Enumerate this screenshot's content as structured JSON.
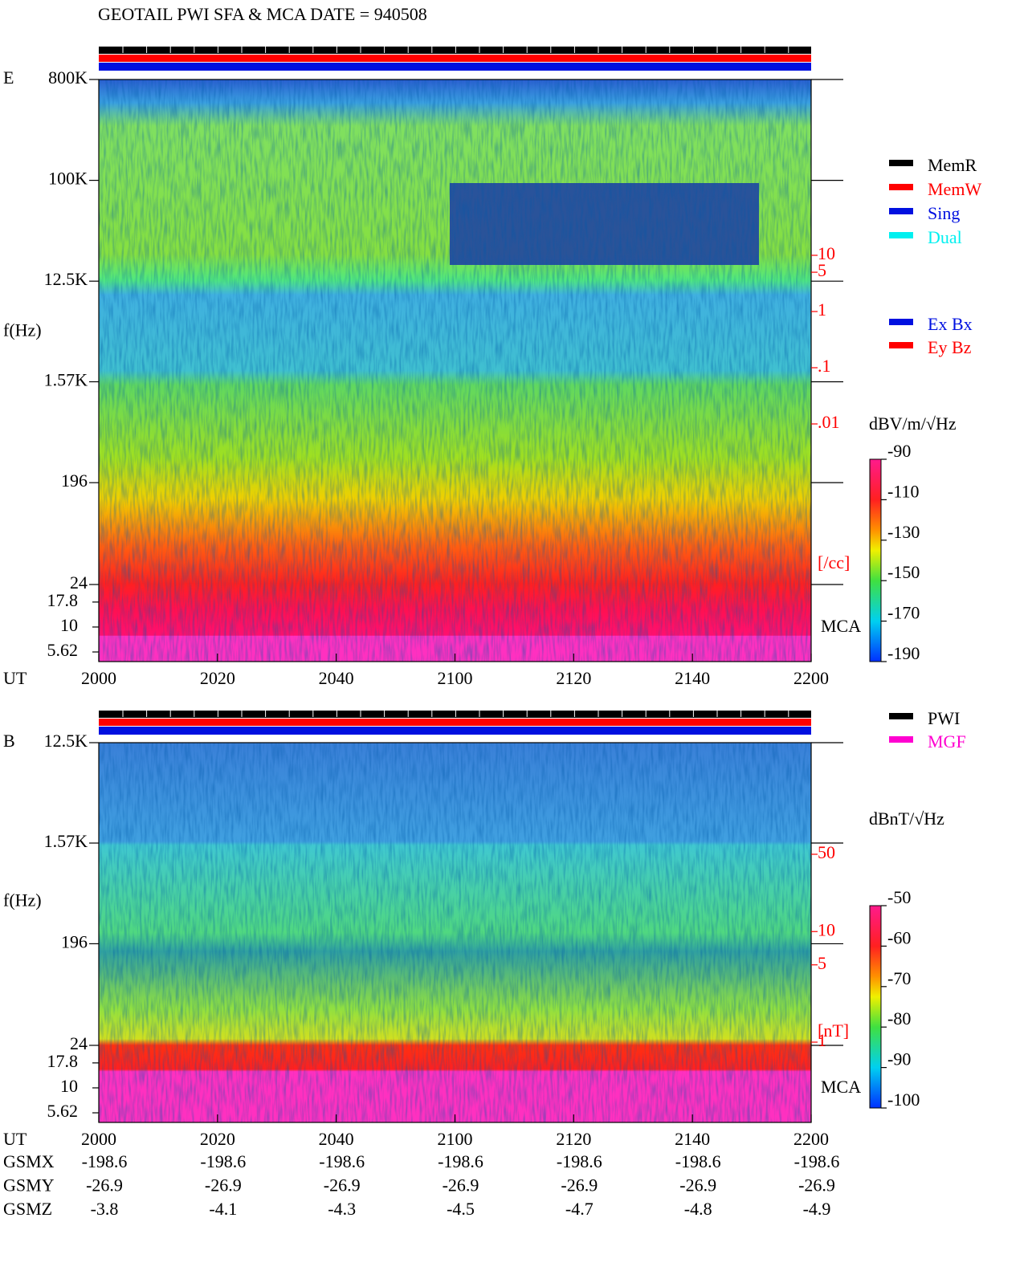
{
  "title": "GEOTAIL  PWI SFA & MCA   DATE = 940508",
  "x_label": "UT",
  "x_labels": [
    "2000",
    "2020",
    "2040",
    "2100",
    "2120",
    "2140",
    "2200"
  ],
  "chart_data": [
    {
      "type": "spectrogram",
      "label": "E",
      "ylabel": "f(Hz)",
      "log_y": true,
      "ylim": [
        24,
        800000
      ],
      "yticks": [
        {
          "value": 800000,
          "label": "800K"
        },
        {
          "value": 100000,
          "label": "100K"
        },
        {
          "value": 12500,
          "label": "12.5K"
        },
        {
          "value": 1570,
          "label": "1.57K"
        },
        196,
        24
      ],
      "mca_label": "MCA",
      "mca_ylim": [
        4.5,
        26.7
      ],
      "mca_ticks": [
        17.8,
        10,
        5.62
      ],
      "right_ylim": [
        0.01,
        10
      ],
      "right_ticks": [
        10,
        5,
        1,
        {
          "value": 0.1,
          "label": ".1"
        },
        {
          "value": 0.01,
          "label": ".01"
        }
      ],
      "right_unit": "[/cc]",
      "colorbar": {
        "label": "dBV/m/√Hz",
        "lim": [
          -190,
          -90
        ],
        "ticks": [
          -90,
          -110,
          -130,
          -150,
          -170,
          -190
        ]
      },
      "legends": [
        [
          {
            "name": "MemR",
            "color": "#000000"
          },
          {
            "name": "MemW",
            "color": "#ff0000"
          },
          {
            "name": "Sing",
            "color": "#0010e0"
          },
          {
            "name": "Dual",
            "color": "#00f0f0"
          }
        ],
        [
          {
            "name": "Ex Bx",
            "color": "#0010e0"
          },
          {
            "name": "Ey Bz",
            "color": "#ff0000"
          }
        ]
      ]
    },
    {
      "type": "spectrogram",
      "label": "B",
      "ylabel": "f(Hz)",
      "log_y": true,
      "ylim": [
        24,
        12500
      ],
      "yticks": [
        {
          "value": 12500,
          "label": "12.5K"
        },
        {
          "value": 1570,
          "label": "1.57K"
        },
        196,
        24
      ],
      "mca_label": "MCA",
      "mca_ylim": [
        4.5,
        26.7
      ],
      "mca_ticks": [
        17.8,
        10,
        5.62
      ],
      "right_ylim": [
        1,
        50
      ],
      "right_ticks": [
        50,
        10,
        5,
        1
      ],
      "right_unit": "[nT]",
      "colorbar": {
        "label": "dBnT/√Hz",
        "lim": [
          -100,
          -50
        ],
        "ticks": [
          -50,
          -60,
          -70,
          -80,
          -90,
          -100
        ]
      },
      "legends": [
        [
          {
            "name": "PWI",
            "color": "#000000"
          },
          {
            "name": "MGF",
            "color": "#ff00d0"
          }
        ]
      ]
    }
  ],
  "orbit": [
    {
      "name": "GSMX",
      "values": [
        -198.6,
        -198.6,
        -198.6,
        -198.6,
        -198.6,
        -198.6,
        -198.6
      ]
    },
    {
      "name": "GSMY",
      "values": [
        -26.9,
        -26.9,
        -26.9,
        -26.9,
        -26.9,
        -26.9,
        -26.9
      ]
    },
    {
      "name": "GSMZ",
      "values": [
        -3.8,
        -4.1,
        -4.3,
        -4.5,
        -4.7,
        -4.8,
        -4.9
      ]
    }
  ]
}
